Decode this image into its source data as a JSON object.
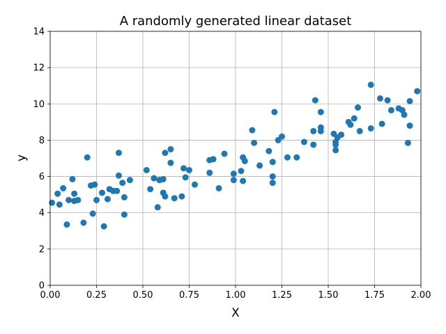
{
  "chart_data": {
    "type": "scatter",
    "title": "A randomly generated linear dataset",
    "xlabel": "X",
    "ylabel": "y",
    "xlim": [
      0,
      2
    ],
    "ylim": [
      0,
      14
    ],
    "grid": true,
    "x_ticks": [
      "0.00",
      "0.25",
      "0.50",
      "0.75",
      "1.00",
      "1.25",
      "1.50",
      "1.75",
      "2.00"
    ],
    "y_ticks": [
      "0",
      "2",
      "4",
      "6",
      "8",
      "10",
      "12",
      "14"
    ],
    "point_color": "#1f77b4",
    "series": [
      {
        "points": [
          [
            0.01,
            4.55
          ],
          [
            0.04,
            5.05
          ],
          [
            0.05,
            4.45
          ],
          [
            0.07,
            5.35
          ],
          [
            0.09,
            3.35
          ],
          [
            0.1,
            4.7
          ],
          [
            0.12,
            5.85
          ],
          [
            0.13,
            4.65
          ],
          [
            0.13,
            5.05
          ],
          [
            0.15,
            4.7
          ],
          [
            0.18,
            3.45
          ],
          [
            0.2,
            7.05
          ],
          [
            0.22,
            5.5
          ],
          [
            0.23,
            3.95
          ],
          [
            0.24,
            5.55
          ],
          [
            0.25,
            4.7
          ],
          [
            0.28,
            5.1
          ],
          [
            0.29,
            3.25
          ],
          [
            0.31,
            4.75
          ],
          [
            0.32,
            5.3
          ],
          [
            0.34,
            5.2
          ],
          [
            0.36,
            5.2
          ],
          [
            0.37,
            6.05
          ],
          [
            0.37,
            7.3
          ],
          [
            0.39,
            5.65
          ],
          [
            0.4,
            3.9
          ],
          [
            0.4,
            4.85
          ],
          [
            0.43,
            5.8
          ],
          [
            0.52,
            6.35
          ],
          [
            0.54,
            5.3
          ],
          [
            0.56,
            5.9
          ],
          [
            0.58,
            4.3
          ],
          [
            0.59,
            5.8
          ],
          [
            0.61,
            5.1
          ],
          [
            0.61,
            5.85
          ],
          [
            0.62,
            4.9
          ],
          [
            0.62,
            7.3
          ],
          [
            0.65,
            6.75
          ],
          [
            0.65,
            7.5
          ],
          [
            0.67,
            4.8
          ],
          [
            0.71,
            4.9
          ],
          [
            0.72,
            6.45
          ],
          [
            0.73,
            5.95
          ],
          [
            0.75,
            6.35
          ],
          [
            0.78,
            5.55
          ],
          [
            0.86,
            6.9
          ],
          [
            0.86,
            6.2
          ],
          [
            0.88,
            6.95
          ],
          [
            0.91,
            5.35
          ],
          [
            0.94,
            7.25
          ],
          [
            0.99,
            6.15
          ],
          [
            0.99,
            5.8
          ],
          [
            1.03,
            6.3
          ],
          [
            1.04,
            5.75
          ],
          [
            1.04,
            7.05
          ],
          [
            1.05,
            6.85
          ],
          [
            1.09,
            8.55
          ],
          [
            1.1,
            7.85
          ],
          [
            1.13,
            6.6
          ],
          [
            1.18,
            7.4
          ],
          [
            1.2,
            6.0
          ],
          [
            1.2,
            5.65
          ],
          [
            1.2,
            6.8
          ],
          [
            1.21,
            9.55
          ],
          [
            1.23,
            8.0
          ],
          [
            1.25,
            8.2
          ],
          [
            1.28,
            7.05
          ],
          [
            1.33,
            7.05
          ],
          [
            1.37,
            7.9
          ],
          [
            1.42,
            8.5
          ],
          [
            1.42,
            7.75
          ],
          [
            1.43,
            10.2
          ],
          [
            1.46,
            9.55
          ],
          [
            1.46,
            8.7
          ],
          [
            1.46,
            8.5
          ],
          [
            1.53,
            8.35
          ],
          [
            1.54,
            7.75
          ],
          [
            1.54,
            7.9
          ],
          [
            1.54,
            7.45
          ],
          [
            1.55,
            8.15
          ],
          [
            1.57,
            8.3
          ],
          [
            1.61,
            9.0
          ],
          [
            1.62,
            8.85
          ],
          [
            1.64,
            9.2
          ],
          [
            1.66,
            9.8
          ],
          [
            1.67,
            8.5
          ],
          [
            1.73,
            11.05
          ],
          [
            1.73,
            8.65
          ],
          [
            1.78,
            10.3
          ],
          [
            1.79,
            8.9
          ],
          [
            1.82,
            10.2
          ],
          [
            1.84,
            9.65
          ],
          [
            1.88,
            9.75
          ],
          [
            1.9,
            9.65
          ],
          [
            1.91,
            9.4
          ],
          [
            1.93,
            7.85
          ],
          [
            1.94,
            8.8
          ],
          [
            1.94,
            10.15
          ],
          [
            1.98,
            10.7
          ]
        ]
      }
    ]
  }
}
